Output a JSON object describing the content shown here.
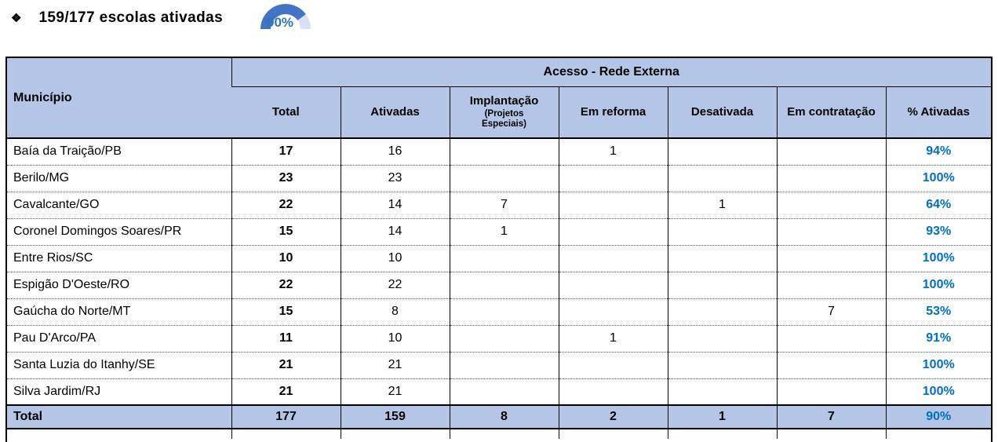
{
  "title": {
    "bullet": "❖",
    "text": "159/177 escolas ativadas"
  },
  "gauge": {
    "label": "90%",
    "percent": 90
  },
  "colors": {
    "header_bg": "#B4C6E7",
    "pct_blue": "#0070C0",
    "gauge_blue": "#4472C4",
    "gauge_track": "#D9E2F3",
    "gauge_label_blue": "#2E74B6"
  },
  "table": {
    "municipio_header": "Município",
    "group_header": "Acesso - Rede Externa",
    "columns": [
      "Total",
      "Ativadas",
      "Implantação",
      "Em reforma",
      "Desativada",
      "Em contratação",
      "% Ativadas"
    ],
    "implantacao_subtitle": "(Projetos Especiais)",
    "rows": [
      {
        "municipio": "Baía da Traição/PB",
        "total": "17",
        "ativadas": "16",
        "implantacao": "",
        "em_reforma": "1",
        "desativada": "",
        "em_contratacao": "",
        "pct_ativadas": "94%"
      },
      {
        "municipio": "Berilo/MG",
        "total": "23",
        "ativadas": "23",
        "implantacao": "",
        "em_reforma": "",
        "desativada": "",
        "em_contratacao": "",
        "pct_ativadas": "100%"
      },
      {
        "municipio": "Cavalcante/GO",
        "total": "22",
        "ativadas": "14",
        "implantacao": "7",
        "em_reforma": "",
        "desativada": "1",
        "em_contratacao": "",
        "pct_ativadas": "64%"
      },
      {
        "municipio": "Coronel Domingos Soares/PR",
        "total": "15",
        "ativadas": "14",
        "implantacao": "1",
        "em_reforma": "",
        "desativada": "",
        "em_contratacao": "",
        "pct_ativadas": "93%"
      },
      {
        "municipio": "Entre Rios/SC",
        "total": "10",
        "ativadas": "10",
        "implantacao": "",
        "em_reforma": "",
        "desativada": "",
        "em_contratacao": "",
        "pct_ativadas": "100%"
      },
      {
        "municipio": "Espigão D'Oeste/RO",
        "total": "22",
        "ativadas": "22",
        "implantacao": "",
        "em_reforma": "",
        "desativada": "",
        "em_contratacao": "",
        "pct_ativadas": "100%"
      },
      {
        "municipio": "Gaúcha do Norte/MT",
        "total": "15",
        "ativadas": "8",
        "implantacao": "",
        "em_reforma": "",
        "desativada": "",
        "em_contratacao": "7",
        "pct_ativadas": "53%"
      },
      {
        "municipio": "Pau D'Arco/PA",
        "total": "11",
        "ativadas": "10",
        "implantacao": "",
        "em_reforma": "1",
        "desativada": "",
        "em_contratacao": "",
        "pct_ativadas": "91%"
      },
      {
        "municipio": "Santa Luzia do Itanhy/SE",
        "total": "21",
        "ativadas": "21",
        "implantacao": "",
        "em_reforma": "",
        "desativada": "",
        "em_contratacao": "",
        "pct_ativadas": "100%"
      },
      {
        "municipio": "Silva Jardim/RJ",
        "total": "21",
        "ativadas": "21",
        "implantacao": "",
        "em_reforma": "",
        "desativada": "",
        "em_contratacao": "",
        "pct_ativadas": "100%"
      }
    ],
    "total_row": {
      "municipio": "Total",
      "total": "177",
      "ativadas": "159",
      "implantacao": "8",
      "em_reforma": "2",
      "desativada": "1",
      "em_contratacao": "7",
      "pct_ativadas": "90%"
    }
  }
}
